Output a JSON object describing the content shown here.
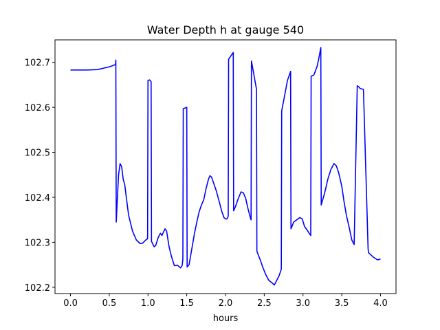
{
  "chart_data": {
    "type": "line",
    "title": "Water Depth h at gauge 540",
    "xlabel": "hours",
    "ylabel": "",
    "xlim": [
      -0.2,
      4.2
    ],
    "ylim": [
      102.186,
      102.75
    ],
    "xticks": [
      0.0,
      0.5,
      1.0,
      1.5,
      2.0,
      2.5,
      3.0,
      3.5,
      4.0
    ],
    "xtick_labels": [
      "0.0",
      "0.5",
      "1.0",
      "1.5",
      "2.0",
      "2.5",
      "3.0",
      "3.5",
      "4.0"
    ],
    "yticks": [
      102.2,
      102.3,
      102.4,
      102.5,
      102.6,
      102.7
    ],
    "ytick_labels": [
      "102.2",
      "102.3",
      "102.4",
      "102.5",
      "102.6",
      "102.7"
    ],
    "grid": false,
    "series": [
      {
        "color": "#0000ff",
        "x": [
          0.0,
          0.2,
          0.35,
          0.5,
          0.58,
          0.585,
          0.59,
          0.6,
          0.62,
          0.64,
          0.66,
          0.68,
          0.7,
          0.72,
          0.75,
          0.8,
          0.85,
          0.9,
          0.93,
          0.97,
          0.995,
          1.0,
          1.02,
          1.04,
          1.045,
          1.08,
          1.1,
          1.13,
          1.16,
          1.18,
          1.2,
          1.22,
          1.24,
          1.27,
          1.3,
          1.34,
          1.38,
          1.42,
          1.44,
          1.45,
          1.455,
          1.5,
          1.505,
          1.53,
          1.56,
          1.6,
          1.63,
          1.66,
          1.69,
          1.72,
          1.75,
          1.78,
          1.8,
          1.82,
          1.85,
          1.88,
          1.92,
          1.95,
          1.98,
          2.0,
          2.02,
          2.035,
          2.04,
          2.1,
          2.105,
          2.13,
          2.16,
          2.2,
          2.23,
          2.26,
          2.29,
          2.32,
          2.33,
          2.335,
          2.4,
          2.405,
          2.45,
          2.48,
          2.52,
          2.56,
          2.6,
          2.63,
          2.66,
          2.69,
          2.72,
          2.725,
          2.8,
          2.84,
          2.845,
          2.85,
          2.88,
          2.92,
          2.96,
          2.99,
          3.02,
          3.05,
          3.08,
          3.1,
          3.105,
          3.14,
          3.18,
          3.2,
          3.23,
          3.235,
          3.28,
          3.32,
          3.36,
          3.4,
          3.43,
          3.46,
          3.5,
          3.53,
          3.56,
          3.6,
          3.63,
          3.66,
          3.7,
          3.73,
          3.735,
          3.78,
          3.84,
          3.845,
          3.9,
          3.95,
          3.97,
          4.0
        ],
        "y": [
          102.683,
          102.683,
          102.684,
          102.69,
          102.695,
          102.705,
          102.345,
          102.38,
          102.45,
          102.475,
          102.468,
          102.44,
          102.428,
          102.4,
          102.36,
          102.325,
          102.305,
          102.297,
          102.298,
          102.305,
          102.308,
          102.66,
          102.661,
          102.657,
          102.302,
          102.29,
          102.293,
          102.31,
          102.32,
          102.315,
          102.323,
          102.33,
          102.325,
          102.292,
          102.27,
          102.248,
          102.249,
          102.243,
          102.248,
          102.262,
          102.597,
          102.6,
          102.245,
          102.25,
          102.28,
          102.32,
          102.345,
          102.368,
          102.383,
          102.395,
          102.42,
          102.44,
          102.448,
          102.445,
          102.43,
          102.415,
          102.39,
          102.37,
          102.355,
          102.352,
          102.352,
          102.358,
          102.707,
          102.722,
          102.37,
          102.38,
          102.395,
          102.412,
          102.41,
          102.398,
          102.375,
          102.355,
          102.35,
          102.703,
          102.64,
          102.28,
          102.26,
          102.245,
          102.228,
          102.215,
          102.21,
          102.205,
          102.215,
          102.225,
          102.24,
          102.592,
          102.66,
          102.68,
          102.33,
          102.332,
          102.345,
          102.35,
          102.355,
          102.352,
          102.335,
          102.328,
          102.32,
          102.315,
          102.669,
          102.672,
          102.69,
          102.705,
          102.733,
          102.383,
          102.41,
          102.44,
          102.462,
          102.475,
          102.47,
          102.455,
          102.425,
          102.39,
          102.36,
          102.33,
          102.305,
          102.295,
          102.648,
          102.644,
          102.642,
          102.64,
          102.286,
          102.277,
          102.268,
          102.262,
          102.261,
          102.263
        ]
      }
    ]
  }
}
